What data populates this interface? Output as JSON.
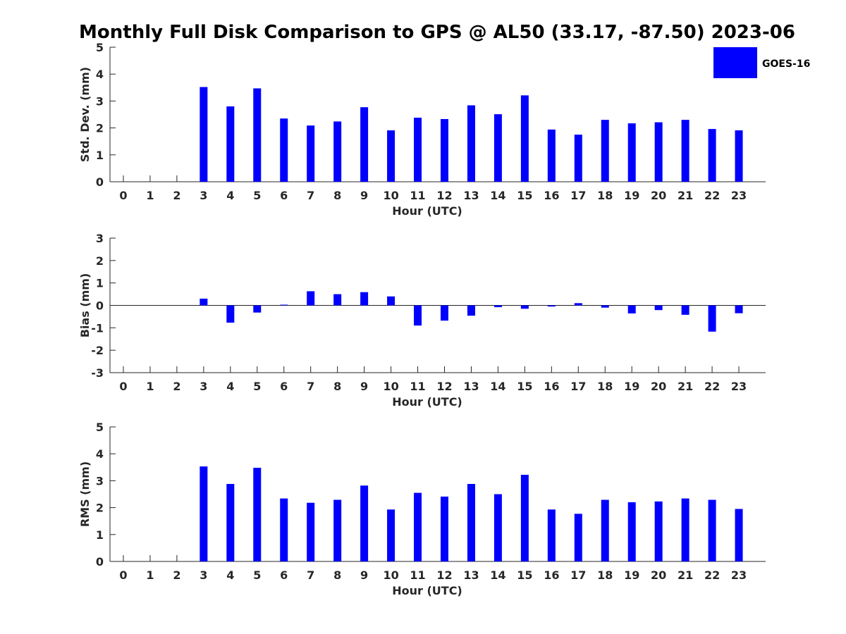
{
  "chart_data": {
    "title": "Monthly Full Disk Comparison to GPS @ AL50 (33.17, -87.50) 2023-06",
    "legend": {
      "label": "GOES-16",
      "color": "#0000ff",
      "position": "top-right"
    },
    "bar_color": "#0000ff",
    "panels": [
      {
        "type": "bar",
        "name": "std-dev",
        "ylabel": "Std. Dev. (mm)",
        "xlabel": "Hour (UTC)",
        "ylim": [
          0,
          5
        ],
        "yticks": [
          0,
          1,
          2,
          3,
          4,
          5
        ],
        "categories": [
          0,
          1,
          2,
          3,
          4,
          5,
          6,
          7,
          8,
          9,
          10,
          11,
          12,
          13,
          14,
          15,
          16,
          17,
          18,
          19,
          20,
          21,
          22,
          23
        ],
        "values": [
          null,
          null,
          null,
          3.52,
          2.8,
          3.47,
          2.35,
          2.09,
          2.24,
          2.77,
          1.91,
          2.38,
          2.33,
          2.84,
          2.51,
          3.21,
          1.94,
          1.75,
          2.3,
          2.17,
          2.21,
          2.3,
          1.96,
          1.91
        ]
      },
      {
        "type": "bar",
        "name": "bias",
        "ylabel": "Bias (mm)",
        "xlabel": "Hour (UTC)",
        "ylim": [
          -3,
          3
        ],
        "yticks": [
          -3,
          -2,
          -1,
          0,
          1,
          2,
          3
        ],
        "categories": [
          0,
          1,
          2,
          3,
          4,
          5,
          6,
          7,
          8,
          9,
          10,
          11,
          12,
          13,
          14,
          15,
          16,
          17,
          18,
          19,
          20,
          21,
          22,
          23
        ],
        "values": [
          null,
          null,
          null,
          0.3,
          -0.77,
          -0.32,
          0.03,
          0.63,
          0.5,
          0.59,
          0.4,
          -0.9,
          -0.68,
          -0.46,
          -0.08,
          -0.15,
          -0.05,
          0.1,
          -0.1,
          -0.36,
          -0.21,
          -0.42,
          -1.17,
          -0.35
        ]
      },
      {
        "type": "bar",
        "name": "rms",
        "ylabel": "RMS (mm)",
        "xlabel": "Hour (UTC)",
        "ylim": [
          0,
          5
        ],
        "yticks": [
          0,
          1,
          2,
          3,
          4,
          5
        ],
        "categories": [
          0,
          1,
          2,
          3,
          4,
          5,
          6,
          7,
          8,
          9,
          10,
          11,
          12,
          13,
          14,
          15,
          16,
          17,
          18,
          19,
          20,
          21,
          22,
          23
        ],
        "values": [
          null,
          null,
          null,
          3.53,
          2.88,
          3.48,
          2.34,
          2.18,
          2.29,
          2.82,
          1.93,
          2.55,
          2.41,
          2.88,
          2.5,
          3.22,
          1.93,
          1.77,
          2.29,
          2.2,
          2.23,
          2.34,
          2.29,
          1.95
        ]
      }
    ]
  }
}
